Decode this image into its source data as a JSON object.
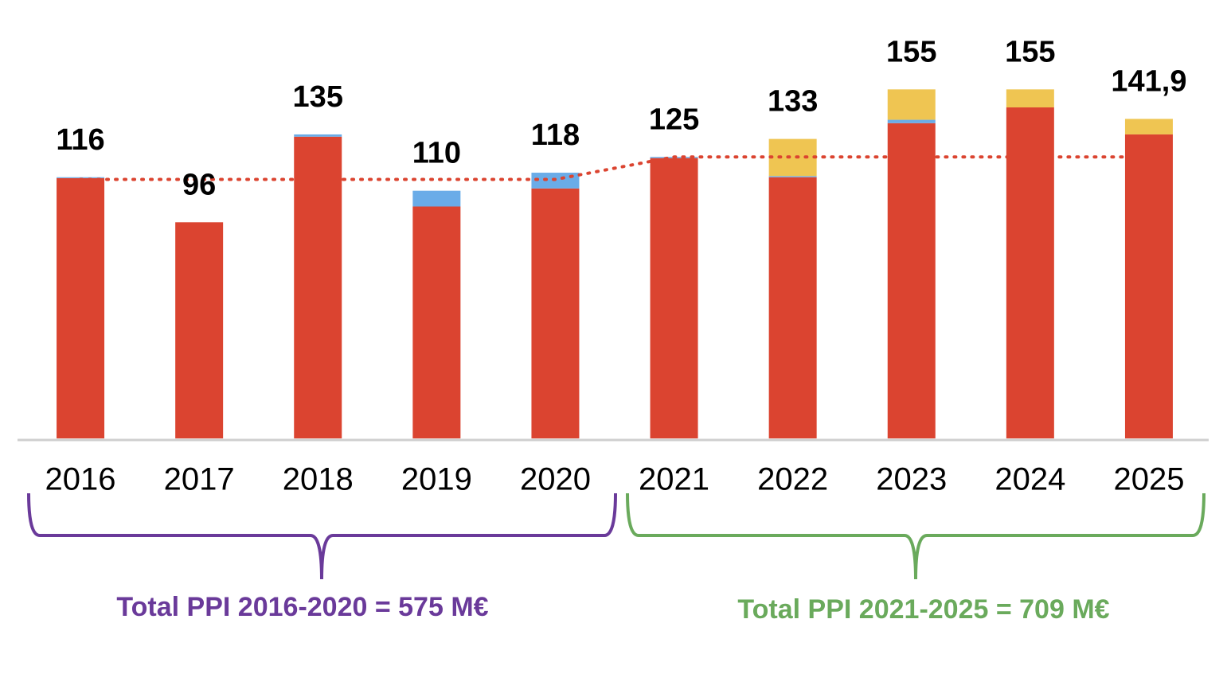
{
  "chart_data": {
    "type": "bar",
    "categories": [
      "2016",
      "2017",
      "2018",
      "2019",
      "2020",
      "2021",
      "2022",
      "2023",
      "2024",
      "2025"
    ],
    "series": [
      {
        "type": "bar",
        "color": "#db4430",
        "values": [
          115.6,
          96,
          134,
          103,
          111,
          124.5,
          116,
          140,
          147,
          135
        ]
      },
      {
        "type": "bar",
        "color": "#6aace8",
        "values": [
          0.4,
          0,
          1,
          7,
          7,
          0.5,
          0.5,
          1.5,
          0,
          0
        ]
      },
      {
        "type": "bar",
        "color": "#efc552",
        "values": [
          0,
          0,
          0,
          0,
          0,
          0,
          16.5,
          13.5,
          8,
          6.9
        ]
      },
      {
        "type": "line",
        "color": "#db4430",
        "values": [
          115,
          115,
          115,
          115,
          115,
          125,
          125,
          125,
          125,
          125
        ]
      }
    ],
    "totals": {
      "values": [
        116,
        96,
        135,
        110,
        118,
        125,
        133,
        155,
        155,
        141.9
      ],
      "value_labels": [
        "116",
        "96",
        "135",
        "110",
        "118",
        "125",
        "133",
        "155",
        "155",
        "141,9"
      ]
    },
    "ylim": [
      0,
      160
    ],
    "annotations": [
      {
        "text": "Total PPI 2016-2020 = 575 M€",
        "color": "#6a3a9a"
      },
      {
        "text": "Total PPI 2021-2025  = 709 M€",
        "color": "#6aaa5c"
      }
    ]
  }
}
